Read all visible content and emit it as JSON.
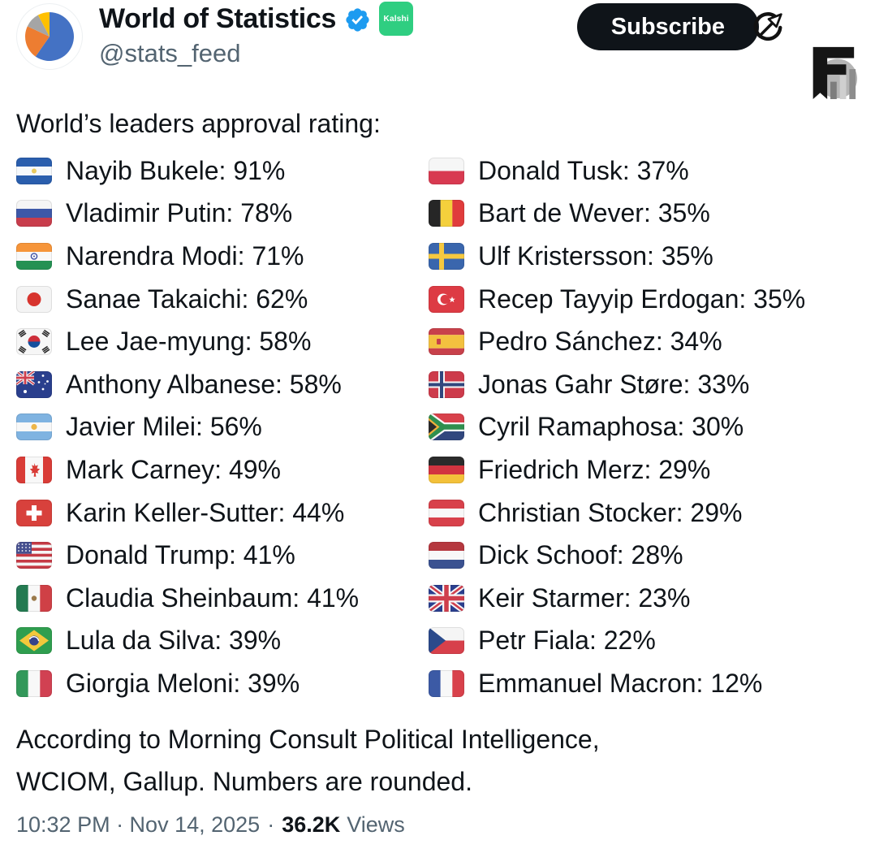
{
  "header": {
    "display_name": "World of Statistics",
    "handle": "@stats_feed",
    "affiliate_badge_label": "Kalshi",
    "subscribe_label": "Subscribe",
    "icons": [
      "pie-chart-avatar",
      "verified-badge-icon",
      "compass-arrow-icon",
      "chart-logo-icon"
    ],
    "colors": {
      "verified_blue": "#1d9bf0",
      "affiliate_green": "#2fce81",
      "subscribe_bg": "#0f1419",
      "text_primary": "#0f1419",
      "text_secondary": "#536471"
    }
  },
  "avatar_pie": {
    "slices": [
      {
        "color": "#4472c4",
        "start_deg": 0,
        "end_deg": 215
      },
      {
        "color": "#ed7d31",
        "start_deg": 215,
        "end_deg": 295
      },
      {
        "color": "#a5a5a5",
        "start_deg": 295,
        "end_deg": 332
      },
      {
        "color": "#ffc000",
        "start_deg": 332,
        "end_deg": 360
      }
    ]
  },
  "post": {
    "intro": "World’s leaders approval rating:",
    "columns": {
      "left": [
        {
          "flag": "el-salvador",
          "country": "El Salvador",
          "name": "Nayib Bukele",
          "approval": "91%"
        },
        {
          "flag": "russia",
          "country": "Russia",
          "name": "Vladimir Putin",
          "approval": "78%"
        },
        {
          "flag": "india",
          "country": "India",
          "name": "Narendra Modi",
          "approval": "71%"
        },
        {
          "flag": "japan",
          "country": "Japan",
          "name": "Sanae Takaichi",
          "approval": "62%"
        },
        {
          "flag": "south-korea",
          "country": "South Korea",
          "name": "Lee Jae-myung",
          "approval": "58%"
        },
        {
          "flag": "australia",
          "country": "Australia",
          "name": "Anthony Albanese",
          "approval": "58%"
        },
        {
          "flag": "argentina",
          "country": "Argentina",
          "name": "Javier Milei",
          "approval": "56%"
        },
        {
          "flag": "canada",
          "country": "Canada",
          "name": "Mark Carney",
          "approval": "49%"
        },
        {
          "flag": "switzerland",
          "country": "Switzerland",
          "name": "Karin Keller-Sutter",
          "approval": "44%"
        },
        {
          "flag": "usa",
          "country": "United States",
          "name": "Donald Trump",
          "approval": "41%"
        },
        {
          "flag": "mexico",
          "country": "Mexico",
          "name": "Claudia Sheinbaum",
          "approval": "41%"
        },
        {
          "flag": "brazil",
          "country": "Brazil",
          "name": "Lula da Silva",
          "approval": "39%"
        },
        {
          "flag": "italy",
          "country": "Italy",
          "name": "Giorgia Meloni",
          "approval": "39%"
        }
      ],
      "right": [
        {
          "flag": "poland",
          "country": "Poland",
          "name": "Donald Tusk",
          "approval": "37%"
        },
        {
          "flag": "belgium",
          "country": "Belgium",
          "name": "Bart de Wever",
          "approval": "35%"
        },
        {
          "flag": "sweden",
          "country": "Sweden",
          "name": "Ulf Kristersson",
          "approval": "35%"
        },
        {
          "flag": "turkey",
          "country": "Turkey",
          "name": "Recep Tayyip Erdogan",
          "approval": "35%"
        },
        {
          "flag": "spain",
          "country": "Spain",
          "name": "Pedro Sánchez",
          "approval": "34%"
        },
        {
          "flag": "norway",
          "country": "Norway",
          "name": "Jonas Gahr Støre",
          "approval": "33%"
        },
        {
          "flag": "south-africa",
          "country": "South Africa",
          "name": "Cyril Ramaphosa",
          "approval": "30%"
        },
        {
          "flag": "germany",
          "country": "Germany",
          "name": "Friedrich Merz",
          "approval": "29%"
        },
        {
          "flag": "austria",
          "country": "Austria",
          "name": "Christian Stocker",
          "approval": "29%"
        },
        {
          "flag": "netherlands",
          "country": "Netherlands",
          "name": "Dick Schoof",
          "approval": "28%"
        },
        {
          "flag": "uk",
          "country": "United Kingdom",
          "name": "Keir Starmer",
          "approval": "23%"
        },
        {
          "flag": "czechia",
          "country": "Czech Republic",
          "name": "Petr Fiala",
          "approval": "22%"
        },
        {
          "flag": "france",
          "country": "France",
          "name": "Emmanuel Macron",
          "approval": "12%"
        }
      ]
    },
    "source_note": [
      "According to Morning Consult Political Intelligence,",
      "WCIOM, Gallup. Numbers are rounded."
    ],
    "meta": {
      "datetime": "10:32 PM · Nov 14, 2025",
      "separator": "·",
      "views_count": "36.2K",
      "views_label": "Views"
    }
  }
}
